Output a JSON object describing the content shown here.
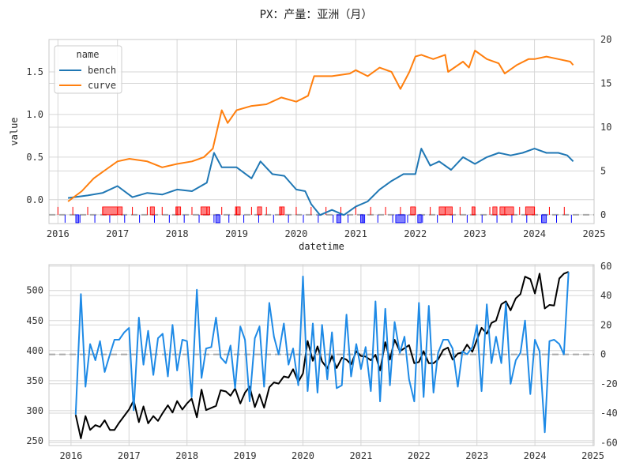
{
  "title": "PX：产量：亚洲（月）",
  "colors": {
    "bench": "#1f77b4",
    "curve": "#ff7f0e",
    "level": "#000000",
    "change": "#1e8ae6",
    "up_signal": "#ff0000",
    "down_signal": "#0000ff",
    "zero_line": "#aaaaaa"
  },
  "chart_data": [
    {
      "type": "line",
      "panel": "top",
      "xlabel": "datetime",
      "ylabel": "value",
      "x_ticks": [
        "2016",
        "2017",
        "2018",
        "2019",
        "2020",
        "2021",
        "2022",
        "2023",
        "2024",
        "2025"
      ],
      "y_left_ticks": [
        "0.0",
        "0.5",
        "1.0",
        "1.5"
      ],
      "y_right_ticks": [
        "0",
        "5",
        "10",
        "15",
        "20"
      ],
      "ylim_left": [
        -0.28,
        1.88
      ],
      "ylim_right": [
        -1.0,
        20.0
      ],
      "xlim": [
        2015.85,
        2025.0
      ],
      "grid": true,
      "legend": {
        "title": "name",
        "entries": [
          "bench",
          "curve"
        ],
        "placement": "top-left"
      },
      "series": [
        {
          "name": "bench",
          "axis": "left",
          "color": "#1f77b4",
          "type": "line",
          "x": [
            2016.17,
            2016.5,
            2016.75,
            2017.0,
            2017.25,
            2017.5,
            2017.75,
            2018.0,
            2018.25,
            2018.5,
            2018.62,
            2018.75,
            2019.0,
            2019.25,
            2019.4,
            2019.6,
            2019.8,
            2020.0,
            2020.15,
            2020.25,
            2020.4,
            2020.6,
            2020.8,
            2021.0,
            2021.2,
            2021.4,
            2021.6,
            2021.8,
            2022.0,
            2022.1,
            2022.25,
            2022.4,
            2022.6,
            2022.8,
            2023.0,
            2023.2,
            2023.4,
            2023.6,
            2023.8,
            2024.0,
            2024.2,
            2024.4,
            2024.55,
            2024.65
          ],
          "y": [
            0.02,
            0.05,
            0.08,
            0.16,
            0.03,
            0.08,
            0.06,
            0.12,
            0.1,
            0.2,
            0.55,
            0.38,
            0.38,
            0.25,
            0.45,
            0.3,
            0.28,
            0.12,
            0.1,
            -0.05,
            -0.18,
            -0.12,
            -0.18,
            -0.08,
            -0.02,
            0.12,
            0.22,
            0.3,
            0.3,
            0.6,
            0.4,
            0.45,
            0.35,
            0.5,
            0.42,
            0.5,
            0.55,
            0.52,
            0.55,
            0.6,
            0.55,
            0.55,
            0.52,
            0.45
          ]
        },
        {
          "name": "curve",
          "axis": "left",
          "color": "#ff7f0e",
          "type": "line",
          "x": [
            2016.17,
            2016.4,
            2016.6,
            2016.8,
            2017.0,
            2017.2,
            2017.5,
            2017.75,
            2018.0,
            2018.25,
            2018.45,
            2018.6,
            2018.75,
            2018.85,
            2019.0,
            2019.25,
            2019.5,
            2019.75,
            2020.0,
            2020.2,
            2020.3,
            2020.6,
            2020.9,
            2021.0,
            2021.2,
            2021.4,
            2021.6,
            2021.75,
            2021.9,
            2022.0,
            2022.1,
            2022.3,
            2022.5,
            2022.55,
            2022.8,
            2022.9,
            2023.0,
            2023.2,
            2023.4,
            2023.5,
            2023.7,
            2023.9,
            2024.0,
            2024.2,
            2024.4,
            2024.6,
            2024.65
          ],
          "y": [
            -0.02,
            0.1,
            0.25,
            0.35,
            0.45,
            0.48,
            0.45,
            0.38,
            0.42,
            0.45,
            0.5,
            0.6,
            1.05,
            0.9,
            1.05,
            1.1,
            1.12,
            1.2,
            1.15,
            1.22,
            1.45,
            1.45,
            1.48,
            1.52,
            1.45,
            1.55,
            1.5,
            1.3,
            1.5,
            1.68,
            1.7,
            1.65,
            1.7,
            1.5,
            1.62,
            1.55,
            1.75,
            1.65,
            1.6,
            1.48,
            1.58,
            1.65,
            1.65,
            1.68,
            1.65,
            1.62,
            1.58
          ]
        }
      ],
      "signals": {
        "up": [
          [
            2016.75,
            2017.08
          ],
          [
            2017.55,
            2017.62
          ],
          [
            2017.98,
            2018.06
          ],
          [
            2018.4,
            2018.55
          ],
          [
            2018.98,
            2019.06
          ],
          [
            2019.35,
            2019.42
          ],
          [
            2019.72,
            2019.8
          ],
          [
            2021.92,
            2022.0
          ],
          [
            2022.4,
            2022.62
          ],
          [
            2022.95,
            2023.0
          ],
          [
            2023.3,
            2023.37
          ],
          [
            2023.42,
            2023.65
          ],
          [
            2023.85,
            2024.0
          ]
        ],
        "down": [
          [
            2016.3,
            2016.35
          ],
          [
            2018.65,
            2018.72
          ],
          [
            2020.68,
            2020.75
          ],
          [
            2021.08,
            2021.15
          ],
          [
            2021.67,
            2021.83
          ],
          [
            2022.04,
            2022.1
          ],
          [
            2024.12,
            2024.2
          ]
        ]
      }
    },
    {
      "type": "line",
      "panel": "bottom",
      "x_ticks": [
        "2016",
        "2017",
        "2018",
        "2019",
        "2020",
        "2021",
        "2022",
        "2023",
        "2024",
        "2025"
      ],
      "y_left_ticks": [
        "250",
        "300",
        "350",
        "400",
        "450",
        "500"
      ],
      "y_right_ticks": [
        "-60",
        "-40",
        "-20",
        "0",
        "20",
        "40",
        "60"
      ],
      "ylim_left": [
        242.0,
        543.0
      ],
      "ylim_right": [
        -62.0,
        61.0
      ],
      "xlim": [
        2015.62,
        2025.02
      ],
      "grid": true,
      "series": [
        {
          "name": "",
          "axis": "left",
          "color": "#000000",
          "type": "line",
          "x": [
            2016.08,
            2016.17,
            2016.25,
            2016.33,
            2016.42,
            2016.5,
            2016.58,
            2016.67,
            2016.75,
            2016.83,
            2017.0,
            2017.08,
            2017.17,
            2017.25,
            2017.33,
            2017.42,
            2017.5,
            2017.58,
            2017.67,
            2017.75,
            2017.83,
            2017.92,
            2018.0,
            2018.08,
            2018.17,
            2018.25,
            2018.33,
            2018.5,
            2018.58,
            2018.67,
            2018.75,
            2018.83,
            2018.92,
            2019.0,
            2019.08,
            2019.17,
            2019.25,
            2019.33,
            2019.42,
            2019.5,
            2019.58,
            2019.67,
            2019.75,
            2019.83,
            2019.92,
            2020.0,
            2020.08,
            2020.17,
            2020.25,
            2020.33,
            2020.42,
            2020.5,
            2020.58,
            2020.67,
            2020.75,
            2020.83,
            2020.92,
            2021.0,
            2021.08,
            2021.17,
            2021.25,
            2021.33,
            2021.42,
            2021.5,
            2021.58,
            2021.67,
            2021.75,
            2021.83,
            2021.92,
            2022.0,
            2022.08,
            2022.17,
            2022.25,
            2022.33,
            2022.42,
            2022.5,
            2022.58,
            2022.67,
            2022.75,
            2022.83,
            2022.92,
            2023.0,
            2023.08,
            2023.17,
            2023.25,
            2023.33,
            2023.42,
            2023.5,
            2023.58,
            2023.67,
            2023.75,
            2023.83,
            2023.92,
            2024.0,
            2024.08,
            2024.17,
            2024.25,
            2024.33,
            2024.42,
            2024.5,
            2024.58
          ],
          "y": [
            293,
            254,
            291,
            268,
            276,
            273,
            284,
            268,
            268,
            280,
            302,
            317,
            281,
            307,
            279,
            291,
            283,
            296,
            309,
            297,
            316,
            302,
            312,
            320,
            289,
            335,
            301,
            308,
            334,
            332,
            325,
            337,
            312,
            330,
            340,
            306,
            327,
            305,
            339,
            347,
            345,
            357,
            355,
            369,
            348,
            362,
            416,
            383,
            407,
            382,
            370,
            391,
            371,
            388,
            385,
            377,
            399,
            391,
            390,
            384,
            393,
            367,
            414,
            385,
            418,
            399,
            404,
            409,
            379,
            381,
            399,
            379,
            379,
            385,
            401,
            405,
            385,
            395,
            397,
            410,
            398,
            418,
            438,
            428,
            446,
            450,
            477,
            482,
            467,
            487,
            494,
            523,
            519,
            495,
            528,
            470,
            476,
            475,
            520,
            528,
            531
          ]
        },
        {
          "name": "",
          "axis": "right",
          "color": "#1e8ae6",
          "type": "line",
          "x": [
            2016.08,
            2016.17,
            2016.25,
            2016.33,
            2016.42,
            2016.5,
            2016.58,
            2016.67,
            2016.75,
            2016.83,
            2016.92,
            2017.0,
            2017.08,
            2017.17,
            2017.25,
            2017.33,
            2017.42,
            2017.5,
            2017.58,
            2017.67,
            2017.75,
            2017.83,
            2017.92,
            2018.0,
            2018.08,
            2018.17,
            2018.25,
            2018.33,
            2018.42,
            2018.5,
            2018.58,
            2018.67,
            2018.75,
            2018.83,
            2018.92,
            2019.0,
            2019.08,
            2019.17,
            2019.25,
            2019.33,
            2019.42,
            2019.5,
            2019.58,
            2019.67,
            2019.75,
            2019.83,
            2019.92,
            2020.0,
            2020.08,
            2020.17,
            2020.25,
            2020.33,
            2020.42,
            2020.5,
            2020.58,
            2020.67,
            2020.75,
            2020.83,
            2020.92,
            2021.0,
            2021.08,
            2021.17,
            2021.25,
            2021.33,
            2021.42,
            2021.5,
            2021.58,
            2021.67,
            2021.75,
            2021.83,
            2021.92,
            2022.0,
            2022.08,
            2022.17,
            2022.25,
            2022.33,
            2022.42,
            2022.5,
            2022.58,
            2022.67,
            2022.75,
            2022.83,
            2022.92,
            2023.0,
            2023.08,
            2023.17,
            2023.25,
            2023.33,
            2023.42,
            2023.5,
            2023.58,
            2023.67,
            2023.75,
            2023.83,
            2023.92,
            2024.0,
            2024.08,
            2024.17,
            2024.25,
            2024.33,
            2024.42,
            2024.5,
            2024.58
          ],
          "y": [
            -41,
            41,
            -22,
            7,
            -4,
            9,
            -12,
            0,
            10,
            10,
            15,
            18,
            -38,
            25,
            -7,
            16,
            -14,
            11,
            14,
            -15,
            20,
            -11,
            10,
            9,
            -29,
            44,
            -16,
            4,
            5,
            25,
            -2,
            -6,
            6,
            -23,
            19,
            10,
            -32,
            11,
            19,
            -22,
            35,
            12,
            0,
            21,
            -7,
            4,
            -21,
            53,
            -25,
            21,
            -26,
            20,
            -17,
            15,
            -23,
            -21,
            27,
            -15,
            7,
            -10,
            5,
            -25,
            36,
            -32,
            31,
            -21,
            22,
            1,
            12,
            -17,
            -32,
            35,
            -29,
            33,
            -26,
            1,
            10,
            10,
            4,
            -22,
            2,
            0,
            5,
            20,
            -25,
            34,
            -6,
            12,
            -6,
            35,
            -20,
            -4,
            1,
            23,
            -27,
            10,
            2,
            -53,
            9,
            10,
            7,
            0,
            56
          ]
        }
      ],
      "reference_line": 0
    }
  ]
}
